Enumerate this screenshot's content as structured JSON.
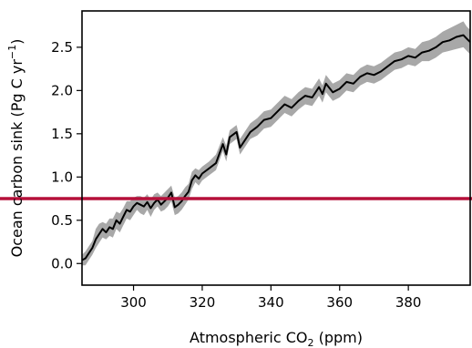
{
  "chart_data": {
    "type": "line",
    "xlabel_main": "Atmospheric CO",
    "xlabel_sub": "2",
    "xlabel_tail": " (ppm)",
    "ylabel_main": "Ocean carbon sink (Pg C yr",
    "ylabel_sup": "−1",
    "ylabel_tail": ")",
    "xlim": [
      285,
      398
    ],
    "ylim": [
      -0.25,
      2.92
    ],
    "x_ticks": [
      300,
      320,
      340,
      360,
      380
    ],
    "x_tick_labels": [
      "300",
      "320",
      "340",
      "360",
      "380"
    ],
    "y_ticks": [
      0.0,
      0.5,
      1.0,
      1.5,
      2.0,
      2.5
    ],
    "y_tick_labels": [
      "0.0",
      "0.5",
      "1.0",
      "1.5",
      "2.0",
      "2.5"
    ],
    "series": [
      {
        "line_color": "#000000",
        "band_color": "#a8a8a8",
        "x": [
          285,
          286,
          287,
          288,
          289,
          290,
          291,
          292,
          293,
          294,
          295,
          296,
          297,
          298,
          299,
          300,
          301,
          302,
          303,
          304,
          305,
          306,
          307,
          308,
          309,
          310,
          311,
          312,
          313,
          314,
          315,
          316,
          317,
          318,
          319,
          320,
          322,
          324,
          326,
          327,
          328,
          330,
          331,
          332,
          334,
          336,
          338,
          340,
          342,
          344,
          346,
          348,
          350,
          352,
          354,
          355,
          356,
          358,
          360,
          362,
          364,
          366,
          368,
          370,
          372,
          374,
          376,
          378,
          380,
          382,
          384,
          386,
          388,
          390,
          392,
          394,
          396,
          397,
          398
        ],
        "y": [
          0.04,
          0.06,
          0.12,
          0.18,
          0.28,
          0.34,
          0.4,
          0.36,
          0.42,
          0.4,
          0.5,
          0.46,
          0.54,
          0.62,
          0.6,
          0.66,
          0.7,
          0.68,
          0.66,
          0.71,
          0.64,
          0.7,
          0.74,
          0.68,
          0.72,
          0.76,
          0.82,
          0.65,
          0.68,
          0.72,
          0.78,
          0.83,
          0.96,
          1.02,
          0.98,
          1.04,
          1.1,
          1.16,
          1.38,
          1.26,
          1.46,
          1.52,
          1.34,
          1.4,
          1.52,
          1.58,
          1.66,
          1.68,
          1.76,
          1.84,
          1.8,
          1.88,
          1.94,
          1.92,
          2.04,
          1.96,
          2.08,
          1.98,
          2.02,
          2.1,
          2.08,
          2.16,
          2.2,
          2.18,
          2.22,
          2.28,
          2.34,
          2.36,
          2.4,
          2.38,
          2.44,
          2.46,
          2.5,
          2.56,
          2.58,
          2.62,
          2.64,
          2.6,
          2.56
        ],
        "upper": [
          0.1,
          0.14,
          0.2,
          0.26,
          0.4,
          0.46,
          0.48,
          0.46,
          0.52,
          0.52,
          0.6,
          0.58,
          0.64,
          0.72,
          0.72,
          0.76,
          0.78,
          0.78,
          0.76,
          0.8,
          0.74,
          0.8,
          0.82,
          0.78,
          0.82,
          0.86,
          0.9,
          0.76,
          0.78,
          0.82,
          0.88,
          0.92,
          1.06,
          1.1,
          1.08,
          1.12,
          1.18,
          1.26,
          1.46,
          1.36,
          1.54,
          1.6,
          1.44,
          1.5,
          1.62,
          1.68,
          1.76,
          1.78,
          1.86,
          1.94,
          1.9,
          1.98,
          2.04,
          2.02,
          2.14,
          2.06,
          2.18,
          2.08,
          2.12,
          2.2,
          2.18,
          2.26,
          2.3,
          2.28,
          2.32,
          2.38,
          2.44,
          2.46,
          2.5,
          2.48,
          2.56,
          2.58,
          2.62,
          2.68,
          2.72,
          2.76,
          2.8,
          2.74,
          2.7
        ],
        "lower": [
          -0.02,
          -0.02,
          0.04,
          0.1,
          0.18,
          0.24,
          0.3,
          0.28,
          0.32,
          0.3,
          0.4,
          0.36,
          0.44,
          0.52,
          0.5,
          0.56,
          0.62,
          0.58,
          0.56,
          0.62,
          0.54,
          0.62,
          0.66,
          0.6,
          0.62,
          0.66,
          0.72,
          0.56,
          0.58,
          0.62,
          0.68,
          0.74,
          0.86,
          0.94,
          0.9,
          0.96,
          1.02,
          1.08,
          1.3,
          1.18,
          1.38,
          1.44,
          1.26,
          1.32,
          1.44,
          1.48,
          1.56,
          1.58,
          1.66,
          1.74,
          1.7,
          1.78,
          1.84,
          1.82,
          1.94,
          1.86,
          1.98,
          1.88,
          1.92,
          2.0,
          1.98,
          2.06,
          2.1,
          2.08,
          2.12,
          2.18,
          2.24,
          2.26,
          2.3,
          2.28,
          2.34,
          2.34,
          2.38,
          2.44,
          2.46,
          2.48,
          2.5,
          2.46,
          2.42
        ]
      }
    ],
    "reference_line": {
      "y": 0.75,
      "color": "#b5103a"
    },
    "grid": false,
    "legend": "none"
  }
}
